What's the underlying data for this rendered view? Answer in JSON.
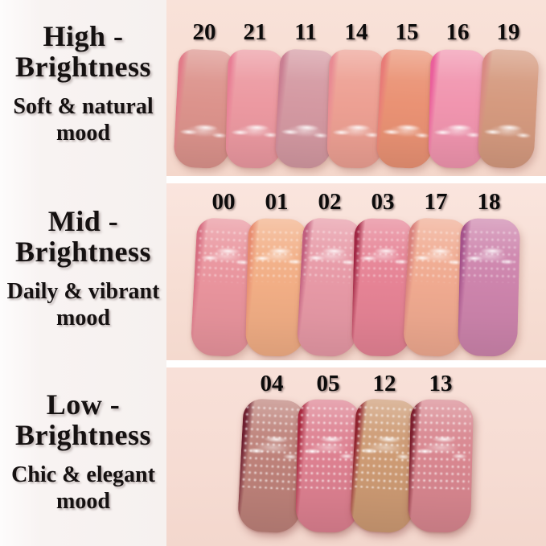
{
  "image_title": "Lip tint swatch brightness comparison",
  "colors": {
    "panel_bg": "#f7f2f0",
    "skin_bg": "#f6dcd2",
    "divider": "#ffffff",
    "label_text": "#151111",
    "number_text": "#0c0b0b"
  },
  "sections": [
    {
      "id": "high-brightness",
      "label": {
        "title": [
          "High -",
          "Brightness"
        ],
        "mood": [
          "Soft & natural",
          "mood"
        ]
      },
      "shades": [
        {
          "num": "20",
          "body": "#dc938c",
          "edge": "#e27b89"
        },
        {
          "num": "21",
          "body": "#ec99a1",
          "edge": "#e87e95"
        },
        {
          "num": "11",
          "body": "#d499a2",
          "edge": "#c97e92"
        },
        {
          "num": "14",
          "body": "#eda093",
          "edge": "#e88a93"
        },
        {
          "num": "15",
          "body": "#ea9274",
          "edge": "#e87b78"
        },
        {
          "num": "16",
          "body": "#f195af",
          "edge": "#ea5f9c"
        },
        {
          "num": "19",
          "body": "#d59a7f",
          "edge": "#d98a84"
        }
      ]
    },
    {
      "id": "mid-brightness",
      "label": {
        "title": [
          "Mid -",
          "Brightness"
        ],
        "mood": [
          "Daily & vibrant",
          "mood"
        ]
      },
      "shades": [
        {
          "num": "00",
          "body": "#e9949d",
          "edge": "#d66d81"
        },
        {
          "num": "01",
          "body": "#f2ae85",
          "edge": "#e78b6f"
        },
        {
          "num": "02",
          "body": "#e799a6",
          "edge": "#c05e7e"
        },
        {
          "num": "03",
          "body": "#e68395",
          "edge": "#a02744"
        },
        {
          "num": "17",
          "body": "#f0aa90",
          "edge": "#d87f7b"
        },
        {
          "num": "18",
          "body": "#cd84ac",
          "edge": "#a4518a"
        }
      ]
    },
    {
      "id": "low-brightness",
      "label": {
        "title": [
          "Low -",
          "Brightness"
        ],
        "mood": [
          "Chic & elegant",
          "mood"
        ]
      },
      "shades": [
        {
          "num": "04",
          "body": "#bd8179",
          "edge": "#6e2030"
        },
        {
          "num": "05",
          "body": "#dd8090",
          "edge": "#a82a40"
        },
        {
          "num": "12",
          "body": "#cd9a73",
          "edge": "#90232f"
        },
        {
          "num": "13",
          "body": "#d8868f",
          "edge": "#7c1f2e"
        }
      ]
    }
  ]
}
